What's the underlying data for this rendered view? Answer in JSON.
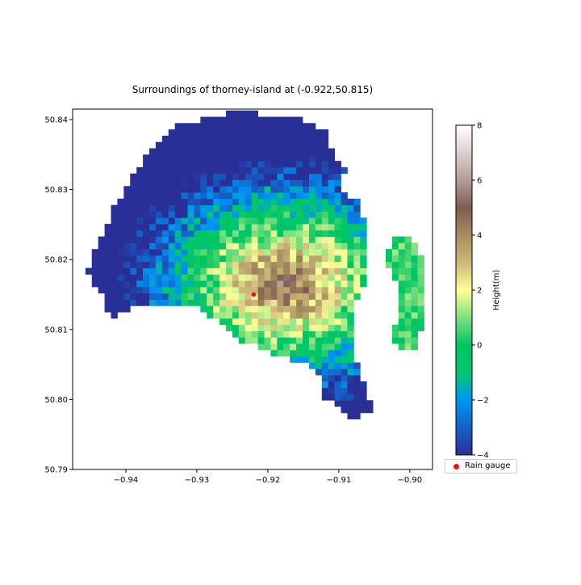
{
  "chart_data": {
    "type": "heatmap",
    "title": "Surroundings of thorney-island at (-0.922,50.815)",
    "xlim": [
      -0.9475,
      -0.8968
    ],
    "ylim": [
      50.79,
      50.8415
    ],
    "x_ticks": [
      -0.94,
      -0.93,
      -0.92,
      -0.91,
      -0.9
    ],
    "x_tick_labels": [
      "−0.94",
      "−0.93",
      "−0.92",
      "−0.91",
      "−0.90"
    ],
    "y_ticks": [
      50.79,
      50.8,
      50.81,
      50.82,
      50.83,
      50.84
    ],
    "y_tick_labels": [
      "50.79",
      "50.80",
      "50.81",
      "50.82",
      "50.83",
      "50.84"
    ],
    "grid": false,
    "colormap": "terrain",
    "colorbar": {
      "label": "Height(m)",
      "range": [
        -4,
        8
      ],
      "ticks": [
        -4,
        -2,
        0,
        2,
        4,
        6,
        8
      ],
      "tick_labels": [
        "−4",
        "−2",
        "0",
        "2",
        "4",
        "6",
        "8"
      ]
    },
    "grid_cell_size_deg": 0.0009,
    "island_outline": [
      [
        -0.9247,
        50.841
      ],
      [
        -0.9165,
        50.8406
      ],
      [
        -0.9118,
        50.8382
      ],
      [
        -0.9108,
        50.8352
      ],
      [
        -0.909,
        50.833
      ],
      [
        -0.9098,
        50.83
      ],
      [
        -0.907,
        50.828
      ],
      [
        -0.9058,
        50.8235
      ],
      [
        -0.9058,
        50.8185
      ],
      [
        -0.9078,
        50.813
      ],
      [
        -0.9082,
        50.8075
      ],
      [
        -0.9068,
        50.803
      ],
      [
        -0.9048,
        50.798
      ],
      [
        -0.9085,
        50.7975
      ],
      [
        -0.9122,
        50.8005
      ],
      [
        -0.9132,
        50.8045
      ],
      [
        -0.918,
        50.806
      ],
      [
        -0.924,
        50.8085
      ],
      [
        -0.93,
        50.8135
      ],
      [
        -0.938,
        50.8135
      ],
      [
        -0.942,
        50.8115
      ],
      [
        -0.9435,
        50.815
      ],
      [
        -0.9455,
        50.8185
      ],
      [
        -0.9435,
        50.823
      ],
      [
        -0.9415,
        50.828
      ],
      [
        -0.9395,
        50.831
      ],
      [
        -0.937,
        50.835
      ],
      [
        -0.933,
        50.839
      ],
      [
        -0.928,
        50.8405
      ]
    ],
    "east_outline": [
      [
        -0.9025,
        50.823
      ],
      [
        -0.9,
        50.8232
      ],
      [
        -0.8985,
        50.821
      ],
      [
        -0.8978,
        50.817
      ],
      [
        -0.8978,
        50.814
      ],
      [
        -0.8985,
        50.8095
      ],
      [
        -0.8985,
        50.807
      ],
      [
        -0.9015,
        50.8068
      ],
      [
        -0.9025,
        50.809
      ],
      [
        -0.9015,
        50.813
      ],
      [
        -0.902,
        50.817
      ],
      [
        -0.9035,
        50.82
      ]
    ],
    "rain_gauge": {
      "x": -0.922,
      "y": 50.815,
      "label": "Rain gauge",
      "color": "#e8141a"
    }
  }
}
